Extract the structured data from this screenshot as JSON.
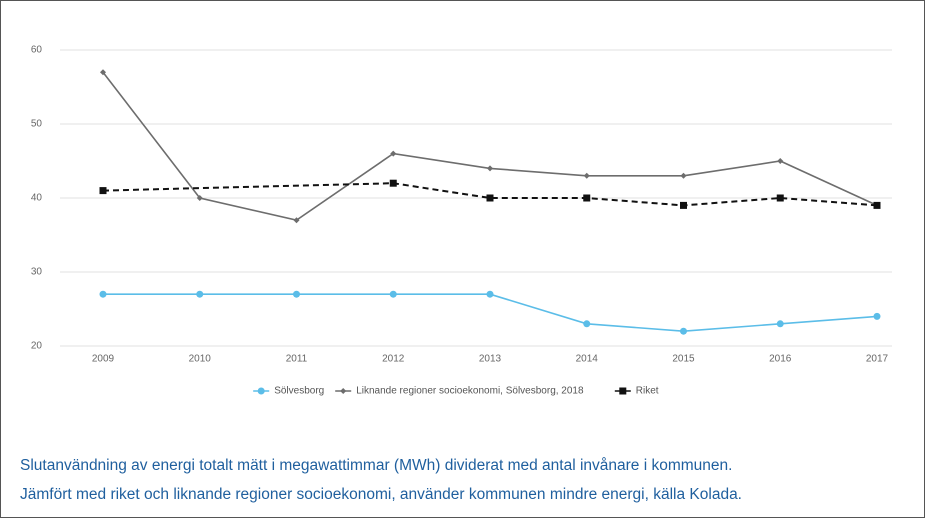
{
  "chart_data": {
    "type": "line",
    "categories": [
      "2009",
      "2010",
      "2011",
      "2012",
      "2013",
      "2014",
      "2015",
      "2016",
      "2017"
    ],
    "series": [
      {
        "name": "Sölvesborg",
        "color": "#5bbde8",
        "marker": "circle",
        "dashed": false,
        "values": [
          27,
          27,
          27,
          27,
          27,
          23,
          22,
          23,
          24
        ]
      },
      {
        "name": "Liknande regioner socioekonomi, Sölvesborg, 2018",
        "color": "#6d6d6d",
        "marker": "diamond",
        "dashed": false,
        "values": [
          57,
          40,
          37,
          46,
          44,
          43,
          43,
          45,
          39
        ]
      },
      {
        "name": "Riket",
        "color": "#111111",
        "marker": "square",
        "dashed": true,
        "values": [
          41,
          null,
          null,
          42,
          40,
          40,
          39,
          40,
          39
        ]
      }
    ],
    "span_gaps": true,
    "ylim": [
      20,
      60
    ],
    "yticks": [
      20,
      30,
      40,
      50,
      60
    ],
    "grid": true,
    "legend": "bottom",
    "caption": [
      "Slutanvändning av energi totalt mätt i megawattimmar (MWh) dividerat med antal invånare i kommunen.",
      "Jämfört med riket och liknande regioner socioekonomi, använder kommunen mindre energi, källa Kolada."
    ]
  }
}
